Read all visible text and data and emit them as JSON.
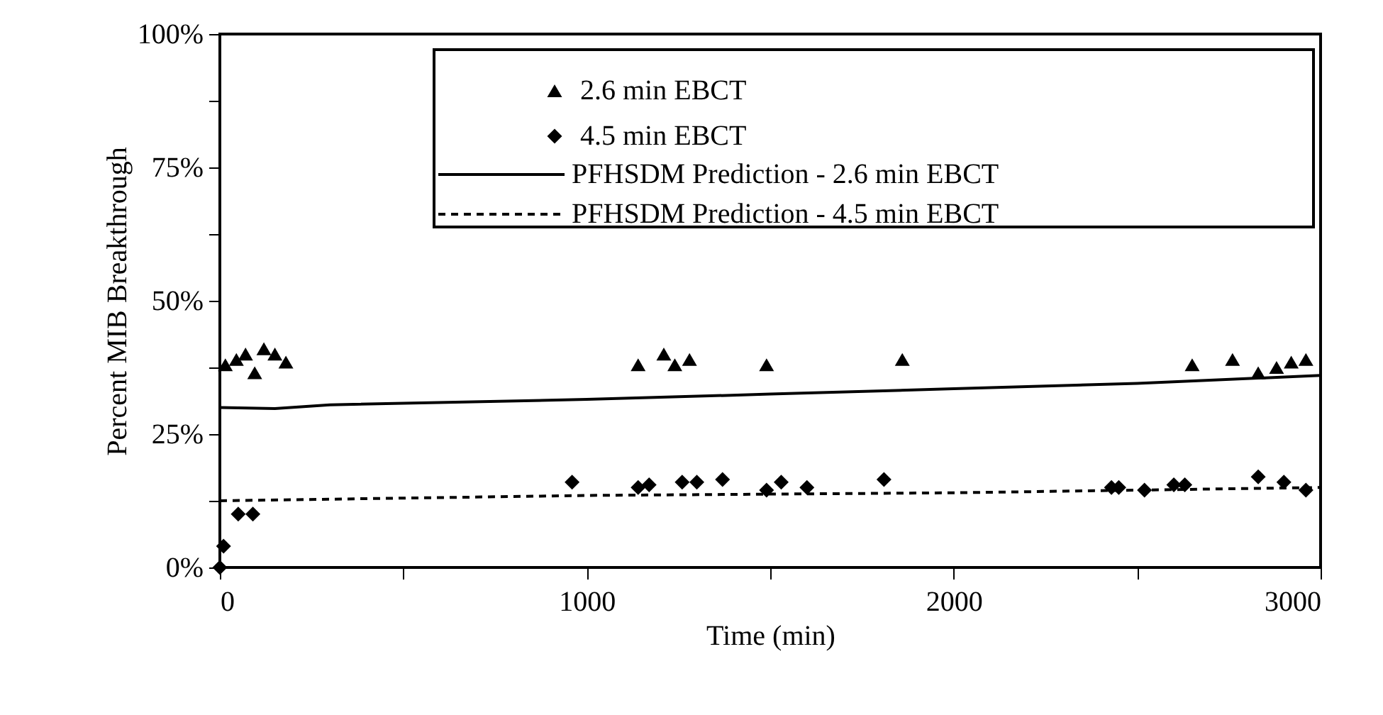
{
  "chart_data": {
    "type": "scatter",
    "xlabel": "Time (min)",
    "ylabel": "Percent MIB Breakthrough",
    "xlim": [
      0,
      3000
    ],
    "ylim": [
      0,
      100
    ],
    "xticks": [
      0,
      {
        "value": 500,
        "label": null
      },
      1000,
      {
        "value": 1500,
        "label": null
      },
      2000,
      {
        "value": 2500,
        "label": null
      },
      3000
    ],
    "yticks": [
      {
        "value": 0,
        "label": "0%"
      },
      {
        "value": 12.5,
        "label": null
      },
      {
        "value": 25,
        "label": "25%"
      },
      {
        "value": 37.5,
        "label": null
      },
      {
        "value": 50,
        "label": "50%"
      },
      {
        "value": 62.5,
        "label": null
      },
      {
        "value": 75,
        "label": "75%"
      },
      {
        "value": 87.5,
        "label": null
      },
      {
        "value": 100,
        "label": "100%"
      }
    ],
    "grid": false,
    "legend": "top right",
    "series": [
      {
        "name": "2.6 min EBCT",
        "marker": "triangle",
        "color": "#000000",
        "x": [
          15,
          45,
          70,
          95,
          120,
          150,
          180,
          1140,
          1210,
          1240,
          1280,
          1490,
          1860,
          2650,
          2760,
          2830,
          2880,
          2920,
          2960
        ],
        "values": [
          38,
          39,
          40,
          36.5,
          41,
          40,
          38.5,
          38,
          40,
          38,
          39,
          38,
          39,
          38,
          39,
          36.5,
          37.5,
          38.5,
          39
        ]
      },
      {
        "name": "4.5 min EBCT",
        "marker": "diamond",
        "color": "#000000",
        "x": [
          0,
          10,
          50,
          90,
          960,
          1140,
          1170,
          1260,
          1300,
          1370,
          1490,
          1530,
          1600,
          1810,
          2430,
          2450,
          2520,
          2600,
          2630,
          2830,
          2900,
          2960
        ],
        "values": [
          0,
          4,
          10,
          10,
          16,
          15,
          15.5,
          16,
          16,
          16.5,
          14.5,
          16,
          15,
          16.5,
          15,
          15,
          14.5,
          15.5,
          15.5,
          17,
          16,
          14.5
        ]
      },
      {
        "name": "PFHSDM Prediction - 2.6 min EBCT",
        "type": "line",
        "line_style": "solid",
        "color": "#000000",
        "x": [
          0,
          150,
          300,
          1000,
          1500,
          2000,
          2500,
          3000
        ],
        "values": [
          30,
          29.8,
          30.5,
          31.5,
          32.5,
          33.5,
          34.5,
          36
        ]
      },
      {
        "name": "PFHSDM Prediction - 4.5 min EBCT",
        "type": "line",
        "line_style": "dashed",
        "color": "#000000",
        "x": [
          0,
          1000,
          2000,
          3000
        ],
        "values": [
          12.5,
          13.5,
          14,
          15
        ]
      }
    ]
  }
}
